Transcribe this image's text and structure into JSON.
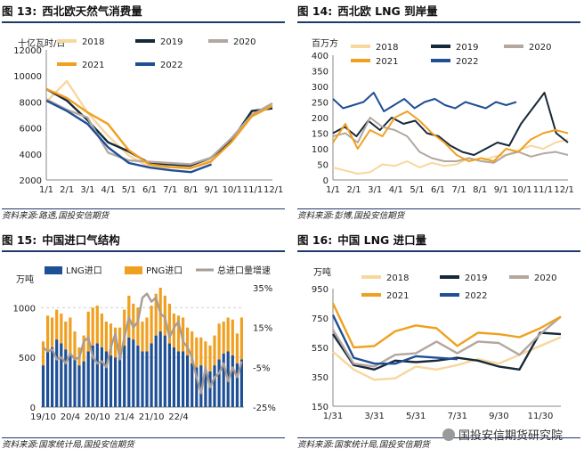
{
  "panels": [
    {
      "num": "图 13:",
      "name": "西北欧天然气消费量",
      "source": "资料来源:路透,国投安信期货",
      "chart_data": {
        "type": "line",
        "ylabel": "十亿瓦时/日",
        "ylim": [
          2000,
          12000
        ],
        "yticks": [
          2000,
          4000,
          6000,
          8000,
          10000,
          12000
        ],
        "xlabels": [
          "1/1",
          "2/1",
          "3/1",
          "4/1",
          "5/1",
          "6/1",
          "7/1",
          "8/1",
          "9/1",
          "10/1",
          "11/1",
          "12/1"
        ],
        "series": [
          {
            "name": "2018",
            "color": "#f7d79e",
            "values": [
              8000,
              9600,
              7200,
              5400,
              3900,
              3000,
              2950,
              3050,
              3500,
              5100,
              7100,
              7800
            ]
          },
          {
            "name": "2019",
            "color": "#16293a",
            "values": [
              9000,
              8100,
              6600,
              4900,
              4200,
              3300,
              3200,
              3100,
              3700,
              5000,
              7300,
              7500
            ]
          },
          {
            "name": "2020",
            "color": "#b3a79f",
            "values": [
              8200,
              7400,
              6800,
              4100,
              3500,
              3400,
              3300,
              3200,
              3700,
              5200,
              7000,
              7900
            ]
          },
          {
            "name": "2021",
            "color": "#f0a020",
            "values": [
              9000,
              8300,
              7200,
              6300,
              4300,
              3200,
              3000,
              2900,
              3400,
              4900,
              6900,
              7700
            ]
          },
          {
            "name": "2022",
            "color": "#1f4f95",
            "values": [
              8100,
              7300,
              6300,
              4500,
              3300,
              2950,
              2750,
              2600,
              3200
            ]
          }
        ]
      }
    },
    {
      "num": "图 14:",
      "name": "西北欧 LNG 到岸量",
      "source": "资料来源:彭博,国投安信期货",
      "chart_data": {
        "type": "line",
        "ylabel": "百万方",
        "ylim": [
          0,
          400
        ],
        "yticks": [
          0,
          50,
          100,
          150,
          200,
          250,
          300,
          350,
          400
        ],
        "xlabels": [
          "1/1",
          "2/1",
          "3/1",
          "4/1",
          "5/1",
          "6/1",
          "7/1",
          "8/1",
          "9/1",
          "10/1",
          "11/1",
          "12/1"
        ],
        "series": [
          {
            "name": "2018",
            "color": "#f7d79e",
            "values": [
              40,
              30,
              20,
              25,
              50,
              45,
              60,
              40,
              55,
              45,
              50,
              70,
              60,
              75,
              80,
              95,
              110,
              100,
              120,
              130
            ]
          },
          {
            "name": "2019",
            "color": "#16293a",
            "values": [
              150,
              170,
              140,
              190,
              160,
              200,
              180,
              190,
              150,
              140,
              110,
              90,
              80,
              100,
              120,
              110,
              180,
              230,
              280,
              150,
              120
            ]
          },
          {
            "name": "2020",
            "color": "#b3a79f",
            "values": [
              140,
              150,
              120,
              200,
              170,
              160,
              140,
              90,
              70,
              60,
              60,
              70,
              60,
              55,
              80,
              90,
              75,
              85,
              90,
              80
            ]
          },
          {
            "name": "2021",
            "color": "#f0a020",
            "values": [
              120,
              180,
              100,
              160,
              140,
              200,
              220,
              190,
              150,
              120,
              80,
              60,
              70,
              60,
              100,
              90,
              130,
              150,
              160,
              150
            ]
          },
          {
            "name": "2022",
            "color": "#1f4f95",
            "values": [
              260,
              230,
              240,
              250,
              280,
              220,
              240,
              260,
              230,
              250,
              260,
              240,
              230,
              250,
              240,
              230,
              250,
              240,
              250
            ]
          }
        ]
      }
    },
    {
      "num": "图 15:",
      "name": "中国进口气结构",
      "source": "资料来源:国家统计局,国投安信期货",
      "chart_data": {
        "type": "bar",
        "ylabel": "万吨",
        "ylim": [
          0,
          1200
        ],
        "yticks": [
          0,
          500,
          1000
        ],
        "y2lim": [
          -25,
          35
        ],
        "y2ticks": [
          "-25%",
          "-5%",
          "15%",
          "35%"
        ],
        "xlabels": [
          "19/10",
          "20/4",
          "20/10",
          "21/4",
          "21/10",
          "22/4"
        ],
        "series": [
          {
            "name": "LNG进口",
            "color": "#1f4f95",
            "values": [
              420,
              560,
              600,
              680,
              640,
              580,
              540,
              500,
              420,
              460,
              560,
              620,
              640,
              600,
              560,
              520,
              500,
              540,
              620,
              700,
              680,
              620,
              560,
              560,
              640,
              720,
              760,
              720,
              640,
              600,
              560,
              560,
              520,
              440,
              400,
              420,
              380,
              360,
              420,
              480,
              540,
              560,
              520,
              440,
              480
            ]
          },
          {
            "name": "PNG进口",
            "color": "#f0a020",
            "values": [
              240,
              360,
              300,
              300,
              300,
              280,
              360,
              260,
              180,
              260,
              400,
              380,
              380,
              340,
              300,
              320,
              300,
              260,
              360,
              420,
              360,
              380,
              300,
              340,
              380,
              420,
              440,
              400,
              400,
              340,
              360,
              340,
              280,
              320,
              300,
              280,
              280,
              260,
              300,
              360,
              320,
              340,
              360,
              300,
              420
            ]
          },
          {
            "name": "总进口量增速",
            "color": "#a89d96",
            "values": [
              5,
              3,
              4,
              -1,
              0,
              -3,
              2,
              -1,
              0,
              8,
              10,
              0,
              -3,
              -2,
              -5,
              5,
              12,
              -1,
              10,
              20,
              15,
              18,
              30,
              32,
              28,
              30,
              22,
              20,
              10,
              15,
              18,
              8,
              5,
              0,
              -10,
              -18,
              -5,
              -15,
              -10,
              -8,
              -3,
              -12,
              -5,
              -10,
              -2
            ]
          }
        ]
      }
    },
    {
      "num": "图 16:",
      "name": "中国 LNG 进口量",
      "source": "资料来源:国家统计局,国投安信期货",
      "chart_data": {
        "type": "line",
        "ylabel": "万吨",
        "ylim": [
          150,
          950
        ],
        "yticks": [
          150,
          350,
          550,
          750,
          950
        ],
        "xlabels": [
          "1/31",
          "3/31",
          "5/31",
          "7/31",
          "9/30",
          "11/30"
        ],
        "series": [
          {
            "name": "2018",
            "color": "#f7d79e",
            "values": [
              520,
              400,
              330,
              340,
              420,
              400,
              430,
              470,
              440,
              500,
              560,
              620
            ]
          },
          {
            "name": "2019",
            "color": "#16293a",
            "values": [
              640,
              430,
              400,
              460,
              450,
              460,
              480,
              460,
              420,
              400,
              650,
              640
            ]
          },
          {
            "name": "2020",
            "color": "#b3a79f",
            "values": [
              670,
              440,
              420,
              500,
              510,
              590,
              510,
              590,
              580,
              500,
              640,
              760
            ]
          },
          {
            "name": "2021",
            "color": "#f0a020",
            "values": [
              850,
              550,
              560,
              660,
              700,
              680,
              560,
              650,
              640,
              620,
              680,
              760
            ]
          },
          {
            "name": "2022",
            "color": "#1f4f95",
            "values": [
              770,
              480,
              440,
              440,
              490,
              480,
              470
            ]
          }
        ]
      }
    }
  ],
  "watermark": "国投安信期货研究院"
}
